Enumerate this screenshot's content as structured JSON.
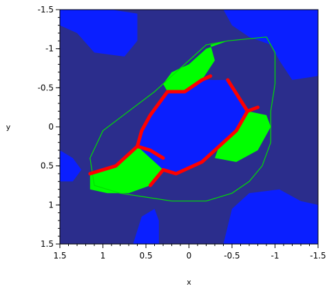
{
  "chart_data": {
    "type": "heatmap",
    "title": "",
    "xlabel": "x",
    "ylabel": "y",
    "xlim": [
      1.5,
      -1.5
    ],
    "ylim": [
      -1.5,
      1.5
    ],
    "x_reversed": true,
    "y_reversed": true,
    "x_ticks": [
      "1.5",
      "1",
      "0.5",
      "0",
      "-0.5",
      "-1",
      "-1.5"
    ],
    "x_tick_values": [
      1.5,
      1,
      0.5,
      0,
      -0.5,
      -1,
      -1.5
    ],
    "y_ticks": [
      "-1.5",
      "-1",
      "-0.5",
      "0",
      "0.5",
      "1",
      "1.5"
    ],
    "y_tick_values": [
      -1.5,
      -1,
      -0.5,
      0,
      0.5,
      1,
      1.5
    ],
    "grid": false,
    "colors": {
      "background_region": "#2b2d8c",
      "bright_region": "#0a1fff",
      "green_region": "#00ff00",
      "red_boundary": "#ff0000",
      "green_boundary": "#00e000"
    },
    "regions": [
      {
        "kind": "bright-blue",
        "points": [
          [
            1.5,
            -1.5
          ],
          [
            0.9,
            -1.5
          ],
          [
            0.6,
            -1.45
          ],
          [
            0.6,
            -1.1
          ],
          [
            0.75,
            -0.9
          ],
          [
            1.1,
            -0.95
          ],
          [
            1.3,
            -1.2
          ],
          [
            1.5,
            -1.3
          ]
        ]
      },
      {
        "kind": "bright-blue",
        "points": [
          [
            -0.4,
            -1.5
          ],
          [
            -1.5,
            -1.5
          ],
          [
            -1.5,
            -0.65
          ],
          [
            -1.2,
            -0.6
          ],
          [
            -1.05,
            -0.85
          ],
          [
            -0.95,
            -1.05
          ],
          [
            -0.7,
            -1.15
          ],
          [
            -0.5,
            -1.3
          ]
        ]
      },
      {
        "kind": "bright-blue",
        "points": [
          [
            1.5,
            0.7
          ],
          [
            1.5,
            0.3
          ],
          [
            1.35,
            0.4
          ],
          [
            1.25,
            0.55
          ],
          [
            1.35,
            0.7
          ]
        ]
      },
      {
        "kind": "bright-blue",
        "points": [
          [
            0.65,
            1.5
          ],
          [
            0.55,
            1.15
          ],
          [
            0.4,
            1.05
          ],
          [
            0.35,
            1.2
          ],
          [
            0.35,
            1.5
          ]
        ]
      },
      {
        "kind": "bright-blue",
        "points": [
          [
            -0.4,
            1.5
          ],
          [
            -0.5,
            1.05
          ],
          [
            -0.7,
            0.85
          ],
          [
            -1.05,
            0.8
          ],
          [
            -1.3,
            0.95
          ],
          [
            -1.5,
            1.0
          ],
          [
            -1.5,
            1.5
          ]
        ]
      },
      {
        "kind": "bright-blue",
        "points": [
          [
            0.25,
            -0.45
          ],
          [
            -0.15,
            -0.6
          ],
          [
            -0.45,
            -0.6
          ],
          [
            -0.68,
            -0.2
          ],
          [
            -0.55,
            0.05
          ],
          [
            -0.35,
            0.25
          ],
          [
            -0.15,
            0.45
          ],
          [
            0.15,
            0.6
          ],
          [
            0.3,
            0.55
          ],
          [
            0.6,
            0.25
          ],
          [
            0.55,
            0.05
          ],
          [
            0.45,
            -0.15
          ]
        ]
      },
      {
        "kind": "green",
        "points": [
          [
            -0.45,
            -1.1
          ],
          [
            -0.25,
            -1.05
          ],
          [
            -0.3,
            -0.85
          ],
          [
            -0.15,
            -0.6
          ],
          [
            0.05,
            -0.45
          ],
          [
            0.25,
            -0.45
          ],
          [
            0.3,
            -0.55
          ],
          [
            0.2,
            -0.7
          ],
          [
            0.0,
            -0.8
          ],
          [
            -0.2,
            -1.0
          ]
        ]
      },
      {
        "kind": "green",
        "points": [
          [
            -0.68,
            -0.2
          ],
          [
            -0.55,
            0.05
          ],
          [
            -0.35,
            0.25
          ],
          [
            -0.3,
            0.4
          ],
          [
            -0.55,
            0.45
          ],
          [
            -0.8,
            0.3
          ],
          [
            -0.95,
            0.0
          ],
          [
            -0.9,
            -0.15
          ]
        ]
      },
      {
        "kind": "green",
        "points": [
          [
            0.6,
            0.25
          ],
          [
            0.3,
            0.55
          ],
          [
            0.45,
            0.75
          ],
          [
            0.7,
            0.85
          ],
          [
            0.95,
            0.85
          ],
          [
            1.15,
            0.8
          ],
          [
            1.15,
            0.6
          ],
          [
            0.85,
            0.5
          ]
        ]
      }
    ],
    "red_boundaries": [
      [
        [
          -0.25,
          -0.65
        ],
        [
          -0.15,
          -0.6
        ],
        [
          0.05,
          -0.45
        ],
        [
          0.25,
          -0.45
        ],
        [
          0.45,
          -0.15
        ],
        [
          0.55,
          0.05
        ],
        [
          0.6,
          0.25
        ],
        [
          0.45,
          0.3
        ],
        [
          0.3,
          0.4
        ]
      ],
      [
        [
          -0.68,
          -0.2
        ],
        [
          -0.55,
          0.05
        ],
        [
          -0.35,
          0.25
        ],
        [
          -0.15,
          0.45
        ],
        [
          0.15,
          0.6
        ],
        [
          0.3,
          0.55
        ]
      ],
      [
        [
          0.6,
          0.25
        ],
        [
          0.85,
          0.5
        ],
        [
          1.15,
          0.6
        ]
      ],
      [
        [
          -0.45,
          -0.6
        ],
        [
          -0.68,
          -0.2
        ],
        [
          -0.8,
          -0.25
        ]
      ],
      [
        [
          0.3,
          0.55
        ],
        [
          0.45,
          0.75
        ]
      ]
    ],
    "green_boundary": [
      [
        -0.45,
        -1.1
      ],
      [
        -0.9,
        -1.15
      ],
      [
        -1.0,
        -0.95
      ],
      [
        -1.0,
        -0.55
      ],
      [
        -0.95,
        -0.2
      ],
      [
        -0.95,
        0.2
      ],
      [
        -0.85,
        0.5
      ],
      [
        -0.7,
        0.7
      ],
      [
        -0.5,
        0.85
      ],
      [
        -0.2,
        0.95
      ],
      [
        0.2,
        0.95
      ],
      [
        0.5,
        0.9
      ],
      [
        0.8,
        0.85
      ],
      [
        1.1,
        0.75
      ],
      [
        1.15,
        0.4
      ],
      [
        1.0,
        0.05
      ],
      [
        0.7,
        -0.2
      ],
      [
        0.4,
        -0.45
      ],
      [
        0.1,
        -0.75
      ],
      [
        -0.2,
        -1.05
      ]
    ]
  }
}
